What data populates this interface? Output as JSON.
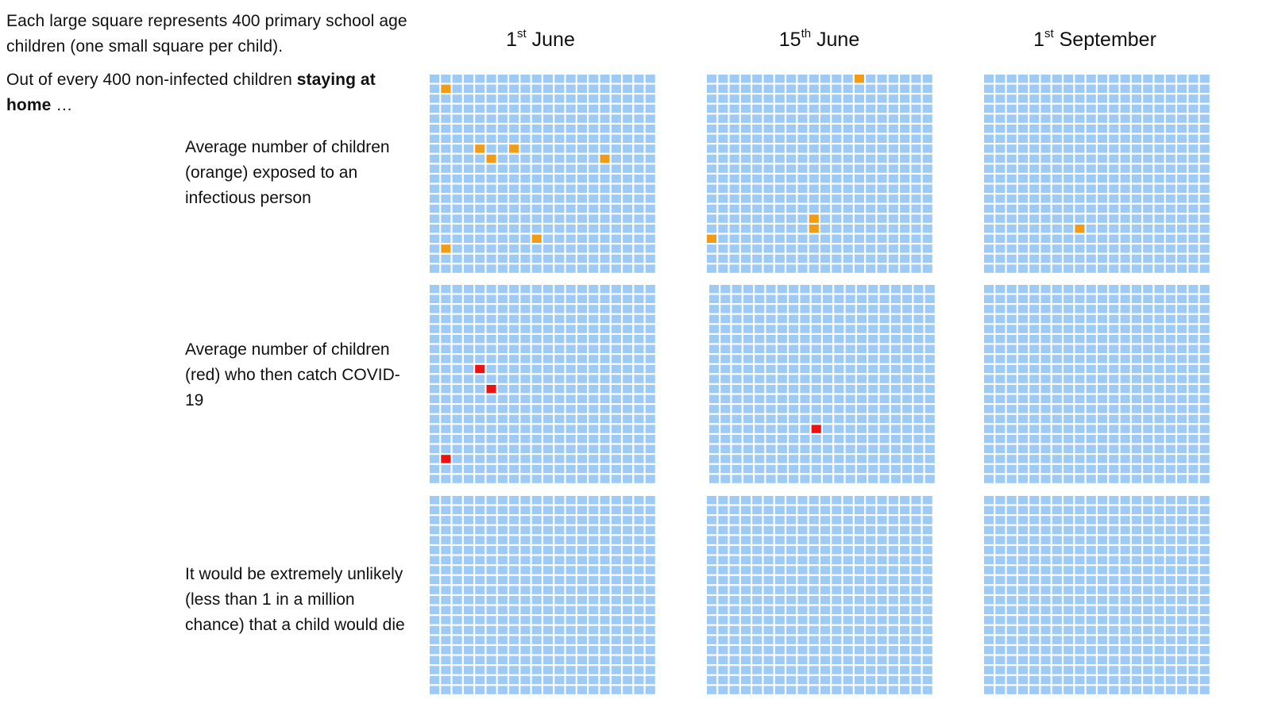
{
  "intro": {
    "line1": "Each large square represents 400 primary school age children (one small square per child).",
    "line2_prefix": "Out of every 400 non-infected children ",
    "line2_bold": "staying at home",
    "line2_suffix": " …"
  },
  "columns": [
    {
      "num": "1",
      "sup": "st",
      "rest": "June"
    },
    {
      "num": "15",
      "sup": "th",
      "rest": "June"
    },
    {
      "num": "1",
      "sup": "st",
      "rest": "September"
    }
  ],
  "rows": [
    {
      "label": "Average number of children (orange) exposed to an infectious person"
    },
    {
      "label": "Average number of children (red) who then catch COVID-19"
    },
    {
      "label": "It would be extremely unlikely (less than 1 in a million chance) that a child would die"
    }
  ],
  "grid": {
    "columns_per_grid": 20,
    "rows_per_grid": 20,
    "base_color": "#9DCBF5",
    "exposed_color": "#F29B16",
    "infected_color": "#EE1111"
  },
  "highlights": [
    [
      {
        "color": "exposed",
        "cells": [
          [
            1,
            1
          ],
          [
            4,
            7
          ],
          [
            7,
            7
          ],
          [
            5,
            8
          ],
          [
            15,
            8
          ],
          [
            9,
            16
          ],
          [
            1,
            17
          ]
        ]
      },
      {
        "color": "infected",
        "cells": [
          [
            4,
            8
          ],
          [
            5,
            10
          ],
          [
            1,
            17
          ]
        ]
      },
      {
        "color": "none",
        "cells": []
      }
    ],
    [
      {
        "color": "exposed",
        "cells": [
          [
            13,
            0
          ],
          [
            9,
            14
          ],
          [
            9,
            15
          ],
          [
            0,
            16
          ]
        ]
      },
      {
        "color": "infected",
        "cells": [
          [
            9,
            14
          ]
        ]
      },
      {
        "color": "none",
        "cells": []
      }
    ],
    [
      {
        "color": "exposed",
        "cells": [
          [
            8,
            15
          ]
        ]
      },
      {
        "color": "none",
        "cells": []
      },
      {
        "color": "none",
        "cells": []
      }
    ]
  ]
}
